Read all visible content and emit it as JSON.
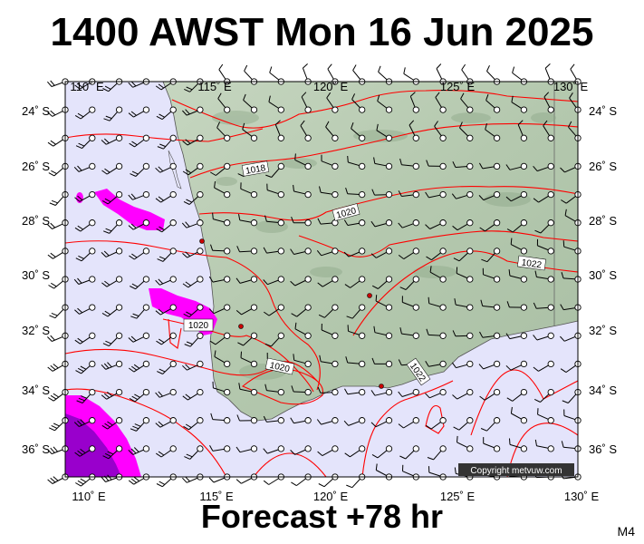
{
  "header": {
    "title": "1400 AWST Mon 16 Jun 2025"
  },
  "footer": {
    "forecast": "Forecast +78 hr",
    "model": "M4"
  },
  "copyright": "Copyright metvuw.com",
  "axes": {
    "lon_labels": [
      "110˚ E",
      "115˚ E",
      "120˚ E",
      "125˚ E",
      "130˚ E"
    ],
    "lat_labels": [
      "24˚ S",
      "26˚ S",
      "28˚ S",
      "30˚ S",
      "32˚ S",
      "34˚ S",
      "36˚ S"
    ]
  },
  "isobars": [
    {
      "label": "1018"
    },
    {
      "label": "1020"
    },
    {
      "label": "1020"
    },
    {
      "label": "1020"
    },
    {
      "label": "1022"
    },
    {
      "label": "1022"
    }
  ],
  "legend_colors": {
    "ocean": "#e4e4fb",
    "land": "#b8ccb3",
    "isobar": "#ff0000",
    "rain_light": "#ff00ff",
    "rain_heavy": "#9900cc"
  }
}
